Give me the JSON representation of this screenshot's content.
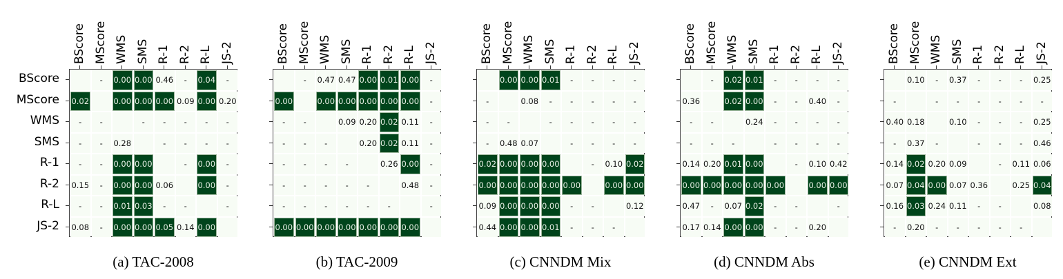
{
  "chart_data": [
    {
      "type": "heatmap",
      "caption": "(a) TAC-2008",
      "rows": [
        "BScore",
        "MScore",
        "WMS",
        "SMS",
        "R-1",
        "R-2",
        "R-L",
        "JS-2"
      ],
      "cols": [
        "BScore",
        "MScore",
        "WMS",
        "SMS",
        "R-1",
        "R-2",
        "R-L",
        "JS-2"
      ],
      "values": [
        [
          "",
          "-",
          "0.00",
          "0.00",
          "0.46",
          "-",
          "0.04",
          "-"
        ],
        [
          "0.02",
          "",
          "0.00",
          "0.00",
          "0.00",
          "0.09",
          "0.00",
          "0.20"
        ],
        [
          "-",
          "-",
          "",
          "-",
          "-",
          "-",
          "-",
          "-"
        ],
        [
          "-",
          "-",
          "0.28",
          "",
          "-",
          "-",
          "-",
          "-"
        ],
        [
          "-",
          "-",
          "0.00",
          "0.00",
          "",
          "-",
          "0.00",
          "-"
        ],
        [
          "0.15",
          "-",
          "0.00",
          "0.00",
          "0.06",
          "",
          "0.00",
          "-"
        ],
        [
          "-",
          "-",
          "0.01",
          "0.03",
          "-",
          "-",
          "",
          "-"
        ],
        [
          "0.08",
          "-",
          "0.00",
          "0.00",
          "0.05",
          "0.14",
          "0.00",
          ""
        ]
      ]
    },
    {
      "type": "heatmap",
      "caption": "(b) TAC-2009",
      "rows": [
        "BScore",
        "MScore",
        "WMS",
        "SMS",
        "R-1",
        "R-2",
        "R-L",
        "JS-2"
      ],
      "cols": [
        "BScore",
        "MScore",
        "WMS",
        "SMS",
        "R-1",
        "R-2",
        "R-L",
        "JS-2"
      ],
      "values": [
        [
          "",
          "-",
          "0.47",
          "0.47",
          "0.00",
          "0.01",
          "0.00",
          "-"
        ],
        [
          "0.00",
          "",
          "0.00",
          "0.00",
          "0.00",
          "0.00",
          "0.00",
          "-"
        ],
        [
          "-",
          "-",
          "",
          "0.09",
          "0.20",
          "0.02",
          "0.11",
          "-"
        ],
        [
          "-",
          "-",
          "-",
          "",
          "0.20",
          "0.02",
          "0.11",
          "-"
        ],
        [
          "-",
          "-",
          "-",
          "-",
          "",
          "0.26",
          "0.00",
          "-"
        ],
        [
          "-",
          "-",
          "-",
          "-",
          "-",
          "",
          "0.48",
          "-"
        ],
        [
          "-",
          "-",
          "-",
          "-",
          "-",
          "-",
          "",
          "-"
        ],
        [
          "0.00",
          "0.00",
          "0.00",
          "0.00",
          "0.00",
          "0.00",
          "0.00",
          ""
        ]
      ]
    },
    {
      "type": "heatmap",
      "caption": "(c) CNNDM Mix",
      "rows": [
        "BScore",
        "MScore",
        "WMS",
        "SMS",
        "R-1",
        "R-2",
        "R-L",
        "JS-2"
      ],
      "cols": [
        "BScore",
        "MScore",
        "WMS",
        "SMS",
        "R-1",
        "R-2",
        "R-L",
        "JS-2"
      ],
      "values": [
        [
          "",
          "0.00",
          "0.00",
          "0.01",
          "-",
          "-",
          "-",
          "-"
        ],
        [
          "-",
          "",
          "0.08",
          "-",
          "-",
          "-",
          "-",
          "-"
        ],
        [
          "-",
          "-",
          "",
          "-",
          "-",
          "-",
          "-",
          "-"
        ],
        [
          "-",
          "0.48",
          "0.07",
          "",
          "-",
          "-",
          "-",
          "-"
        ],
        [
          "0.02",
          "0.00",
          "0.00",
          "0.00",
          "",
          "-",
          "0.10",
          "0.02"
        ],
        [
          "0.00",
          "0.00",
          "0.00",
          "0.00",
          "0.00",
          "",
          "0.00",
          "0.00"
        ],
        [
          "0.09",
          "0.00",
          "0.00",
          "0.00",
          "-",
          "-",
          "",
          "0.12"
        ],
        [
          "0.44",
          "0.00",
          "0.00",
          "0.01",
          "-",
          "-",
          "-",
          ""
        ]
      ]
    },
    {
      "type": "heatmap",
      "caption": "(d) CNNDM Abs",
      "rows": [
        "BScore",
        "MScore",
        "WMS",
        "SMS",
        "R-1",
        "R-2",
        "R-L",
        "JS-2"
      ],
      "cols": [
        "BScore",
        "MScore",
        "WMS",
        "SMS",
        "R-1",
        "R-2",
        "R-L",
        "JS-2"
      ],
      "values": [
        [
          "",
          "-",
          "0.02",
          "0.01",
          "-",
          "-",
          "-",
          "-"
        ],
        [
          "0.36",
          "",
          "0.02",
          "0.00",
          "-",
          "-",
          "0.40",
          "-"
        ],
        [
          "-",
          "-",
          "",
          "0.24",
          "-",
          "-",
          "-",
          "-"
        ],
        [
          "-",
          "-",
          "-",
          "",
          "-",
          "-",
          "-",
          "-"
        ],
        [
          "0.14",
          "0.20",
          "0.01",
          "0.00",
          "",
          "-",
          "0.10",
          "0.42"
        ],
        [
          "0.00",
          "0.00",
          "0.00",
          "0.00",
          "0.00",
          "",
          "0.00",
          "0.00"
        ],
        [
          "0.47",
          "-",
          "0.07",
          "0.02",
          "-",
          "-",
          "",
          "-"
        ],
        [
          "0.17",
          "0.14",
          "0.00",
          "0.00",
          "-",
          "-",
          "0.20",
          ""
        ]
      ]
    },
    {
      "type": "heatmap",
      "caption": "(e) CNNDM Ext",
      "rows": [
        "BScore",
        "MScore",
        "WMS",
        "SMS",
        "R-1",
        "R-2",
        "R-L",
        "JS-2"
      ],
      "cols": [
        "BScore",
        "MScore",
        "WMS",
        "SMS",
        "R-1",
        "R-2",
        "R-L",
        "JS-2"
      ],
      "values": [
        [
          "",
          "0.10",
          "-",
          "0.37",
          "-",
          "-",
          "-",
          "0.25"
        ],
        [
          "-",
          "",
          "-",
          "-",
          "-",
          "-",
          "-",
          "-"
        ],
        [
          "0.40",
          "0.18",
          "",
          "0.10",
          "-",
          "-",
          "-",
          "0.25"
        ],
        [
          "-",
          "0.37",
          "-",
          "",
          "-",
          "-",
          "-",
          "0.46"
        ],
        [
          "0.14",
          "0.02",
          "0.20",
          "0.09",
          "",
          "-",
          "0.11",
          "0.06"
        ],
        [
          "0.07",
          "0.04",
          "0.00",
          "0.07",
          "0.36",
          "",
          "0.25",
          "0.04"
        ],
        [
          "0.16",
          "0.03",
          "0.24",
          "0.11",
          "-",
          "-",
          "",
          "0.08"
        ],
        [
          "-",
          "0.20",
          "-",
          "-",
          "-",
          "-",
          "-",
          ""
        ]
      ]
    }
  ],
  "colors": {
    "significant": "#00441b",
    "background": "#f7fcf5"
  },
  "significance_threshold": 0.05
}
